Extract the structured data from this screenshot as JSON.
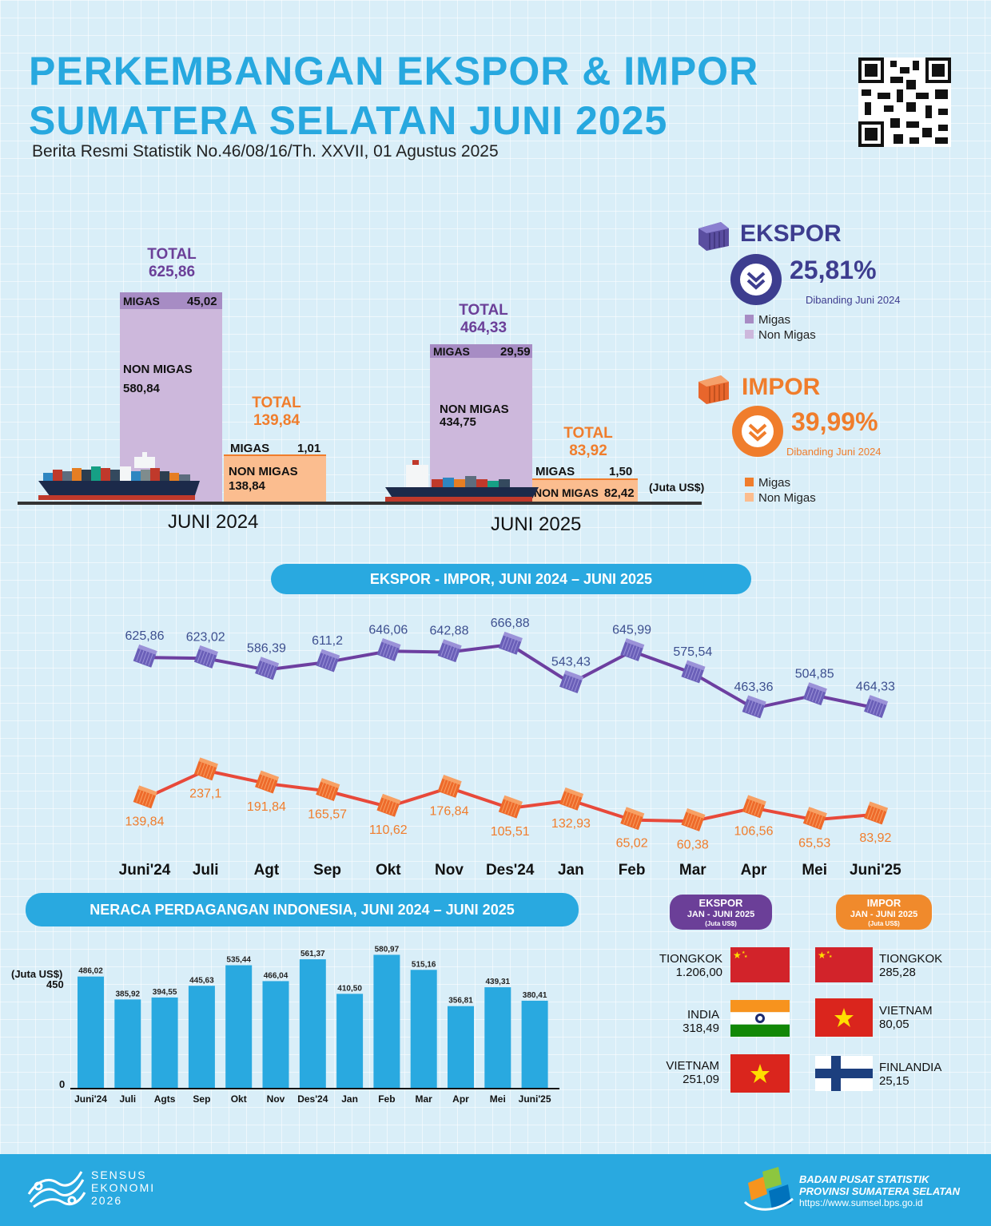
{
  "header": {
    "title_line1": "PERKEMBANGAN EKSPOR & IMPOR",
    "title_line2": "SUMATERA SELATAN JUNI 2025",
    "subtitle": "Berita Resmi Statistik No.46/08/16/Th. XXVII, 01 Agustus 2025"
  },
  "comparison": {
    "total_label": "TOTAL",
    "migas_label": "MIGAS",
    "nonmigas_label": "NON MIGAS",
    "unit": "(Juta US$)",
    "juni2024": {
      "label": "JUNI 2024",
      "ekspor_total": "625,86",
      "ekspor_migas": "45,02",
      "ekspor_nonmigas": "580,84",
      "impor_total": "139,84",
      "impor_migas": "1,01",
      "impor_nonmigas": "138,84"
    },
    "juni2025": {
      "label": "JUNI 2025",
      "ekspor_total": "464,33",
      "ekspor_migas": "29,59",
      "ekspor_nonmigas": "434,75",
      "impor_total": "83,92",
      "impor_migas": "1,50",
      "impor_nonmigas": "82,42"
    }
  },
  "summary": {
    "ekspor": {
      "title": "EKSPOR",
      "pct": "25,81%",
      "compare": "Dibanding Juni 2024",
      "legend_migas": "Migas",
      "legend_nonmigas": "Non Migas"
    },
    "impor": {
      "title": "IMPOR",
      "pct": "39,99%",
      "compare": "Dibanding Juni 2024",
      "legend_migas": "Migas",
      "legend_nonmigas": "Non Migas"
    }
  },
  "colors": {
    "ekspor_dark": "#6b3f98",
    "ekspor_light": "#cdb8dc",
    "impor_dark": "#f07d2c",
    "impor_light": "#fbbd8f",
    "blue": "#29a9e0",
    "export_line": "#6d3fa0",
    "import_line": "#e8493a"
  },
  "line_section": {
    "title": "EKSPOR - IMPOR, JUNI 2024 – JUNI 2025"
  },
  "neraca_section": {
    "title": "NERACA PERDAGANGAN INDONESIA, JUNI 2024 – JUNI 2025",
    "ylabel": "(Juta US$)",
    "ytick_450": "450",
    "ytick_0": "0"
  },
  "top_partners": {
    "ekspor": {
      "title": "EKSPOR",
      "period": "JAN - JUNI 2025",
      "unit": "(Juta US$)",
      "items": [
        {
          "name": "TIONGKOK",
          "value": "1.206,00"
        },
        {
          "name": "INDIA",
          "value": "318,49"
        },
        {
          "name": "VIETNAM",
          "value": "251,09"
        }
      ]
    },
    "impor": {
      "title": "IMPOR",
      "period": "JAN - JUNI 2025",
      "unit": "(Juta US$)",
      "items": [
        {
          "name": "TIONGKOK",
          "value": "285,28"
        },
        {
          "name": "VIETNAM",
          "value": "80,05"
        },
        {
          "name": "FINLANDIA",
          "value": "25,15"
        }
      ]
    }
  },
  "footer": {
    "sensus_line1": "SENSUS",
    "sensus_line2": "EKONOMI",
    "sensus_line3": "2026",
    "bps_line1": "BADAN PUSAT STATISTIK",
    "bps_line2": "PROVINSI SUMATERA SELATAN",
    "bps_url": "https://www.sumsel.bps.go.id"
  },
  "chart_data": [
    {
      "type": "bar",
      "title": "JUNI 2024 / JUNI 2025",
      "categories": [
        "JUNI 2024",
        "JUNI 2025"
      ],
      "unit": "Juta US$",
      "series": [
        {
          "name": "Ekspor Migas",
          "values": [
            45.02,
            29.59
          ]
        },
        {
          "name": "Ekspor Non Migas",
          "values": [
            580.84,
            434.75
          ]
        },
        {
          "name": "Impor Migas",
          "values": [
            1.01,
            1.5
          ]
        },
        {
          "name": "Impor Non Migas",
          "values": [
            138.84,
            82.42
          ]
        }
      ]
    },
    {
      "type": "line",
      "title": "EKSPOR - IMPOR, JUNI 2024 – JUNI 2025",
      "categories": [
        "Juni'24",
        "Juli",
        "Agt",
        "Sep",
        "Okt",
        "Nov",
        "Des'24",
        "Jan",
        "Feb",
        "Mar",
        "Apr",
        "Mei",
        "Juni'25"
      ],
      "series": [
        {
          "name": "Ekspor",
          "values": [
            625.86,
            623.02,
            586.39,
            611.2,
            646.06,
            642.88,
            666.88,
            543.43,
            645.99,
            575.54,
            463.36,
            504.85,
            464.33
          ],
          "labels": [
            "625,86",
            "623,02",
            "586,39",
            "611,2",
            "646,06",
            "642,88",
            "666,88",
            "543,43",
            "645,99",
            "575,54",
            "463,36",
            "504,85",
            "464,33"
          ]
        },
        {
          "name": "Impor",
          "values": [
            139.84,
            237.1,
            191.84,
            165.57,
            110.62,
            176.84,
            105.51,
            132.93,
            65.02,
            60.38,
            106.56,
            65.53,
            83.92
          ],
          "labels": [
            "139,84",
            "237,1",
            "191,84",
            "165,57",
            "110,62",
            "176,84",
            "105,51",
            "132,93",
            "65,02",
            "60,38",
            "106,56",
            "65,53",
            "83,92"
          ]
        }
      ]
    },
    {
      "type": "bar",
      "title": "NERACA PERDAGANGAN INDONESIA, JUNI 2024 – JUNI 2025",
      "ylabel": "(Juta US$)",
      "ylim": [
        0,
        600
      ],
      "categories": [
        "Juni'24",
        "Juli",
        "Agts",
        "Sep",
        "Okt",
        "Nov",
        "Des'24",
        "Jan",
        "Feb",
        "Mar",
        "Apr",
        "Mei",
        "Juni'25"
      ],
      "values": [
        486.02,
        385.92,
        394.55,
        445.63,
        535.44,
        466.04,
        561.37,
        410.5,
        580.97,
        515.16,
        356.81,
        439.31,
        380.41
      ],
      "labels": [
        "486,02",
        "385,92",
        "394,55",
        "445,63",
        "535,44",
        "466,04",
        "561,37",
        "410,50",
        "580,97",
        "515,16",
        "356,81",
        "439,31",
        "380,41"
      ]
    }
  ]
}
